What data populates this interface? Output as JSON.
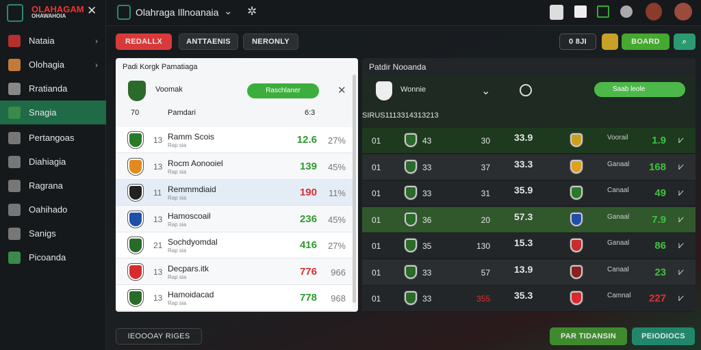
{
  "sidebar": {
    "brand": "OLAHAGAM",
    "brand_sub": "OHAWAHOIA",
    "items": [
      "Nataia",
      "Olohagia",
      "Rratianda",
      "Snagia",
      "Pertangoas",
      "Diahiagia",
      "Ragrana",
      "Oahihado",
      "Sanigs",
      "Picoanda"
    ]
  },
  "header": {
    "title": "Olahraga Illnoanaia"
  },
  "tabs": [
    "REDALLX",
    "ANTTAENIS",
    "NERONLY"
  ],
  "actions": [
    "0 8JI",
    "BOARD"
  ],
  "left_panel": {
    "title": "Padi Korgk Pamatiaga",
    "team": "Voomak",
    "toggle": "Raschlaner",
    "columns": [
      "70",
      "Pamdari",
      "6:3"
    ],
    "rows": [
      {
        "rank": "13",
        "name": "Ramm Scois",
        "sub": "Rap sia",
        "value": "12.6",
        "pct": "27%",
        "color": "#2e9a2e"
      },
      {
        "rank": "13",
        "name": "Rocm Aonooiel",
        "sub": "Rap sia",
        "value": "139",
        "pct": "45%",
        "color": "#2e9a2e"
      },
      {
        "rank": "11",
        "name": "Remmmdiaid",
        "sub": "Rap sia",
        "value": "190",
        "pct": "11%",
        "color": "#d43030"
      },
      {
        "rank": "13",
        "name": "Hamoscoail",
        "sub": "Rap sia",
        "value": "236",
        "pct": "45%",
        "color": "#2e9a2e"
      },
      {
        "rank": "21",
        "name": "Sochdyomdal",
        "sub": "Rap sia",
        "value": "416",
        "pct": "27%",
        "color": "#2e9a2e"
      },
      {
        "rank": "13",
        "name": "Decpars.itk",
        "sub": "Rap sia",
        "value": "776",
        "pct": "966",
        "color": "#d43030"
      },
      {
        "rank": "13",
        "name": "Hamoidacad",
        "sub": "Rap sia",
        "value": "778",
        "pct": "968",
        "color": "#2e9a2e"
      }
    ]
  },
  "right_panel": {
    "title": "Patdir Nooanda",
    "team": "Wonnie",
    "toggle": "Saab leole",
    "columns": [
      "SIRUS",
      "1",
      "113",
      "314",
      "313",
      "213"
    ],
    "rows": [
      {
        "a": "01",
        "b": "43",
        "c": "30",
        "score": "33.9",
        "name": "Voorail",
        "value": "1.9",
        "c_color": "#e6e6e6",
        "v_color": "#3fc23f"
      },
      {
        "a": "01",
        "b": "33",
        "c": "37",
        "score": "33.3",
        "name": "Ganaal",
        "value": "168",
        "c_color": "#e6e6e6",
        "v_color": "#3fc23f"
      },
      {
        "a": "01",
        "b": "33",
        "c": "31",
        "score": "35.9",
        "name": "Canaal",
        "value": "49",
        "c_color": "#e6e6e6",
        "v_color": "#3fc23f"
      },
      {
        "a": "01",
        "b": "36",
        "c": "20",
        "score": "57.3",
        "name": "Ganaal",
        "value": "7.9",
        "c_color": "#e6e6e6",
        "v_color": "#3fc23f"
      },
      {
        "a": "01",
        "b": "35",
        "c": "130",
        "score": "15.3",
        "name": "Ganaal",
        "value": "86",
        "c_color": "#e6e6e6",
        "v_color": "#3fc23f"
      },
      {
        "a": "01",
        "b": "33",
        "c": "57",
        "score": "13.9",
        "name": "Canaal",
        "value": "23",
        "c_color": "#e6e6e6",
        "v_color": "#3fc23f"
      },
      {
        "a": "01",
        "b": "33",
        "c": "355",
        "score": "35.3",
        "name": "Camnal",
        "value": "227",
        "c_color": "#e03030",
        "v_color": "#e03030"
      }
    ]
  },
  "footer": {
    "left": "IEOOOAY RIGES",
    "buttons": [
      "PAR TIDANSIN",
      "PEIODIOCS"
    ]
  }
}
